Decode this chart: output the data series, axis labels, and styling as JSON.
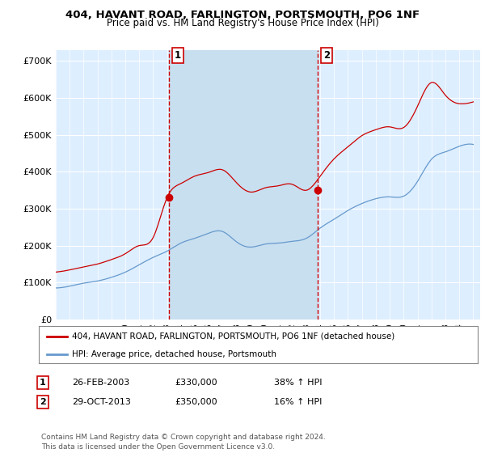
{
  "title": "404, HAVANT ROAD, FARLINGTON, PORTSMOUTH, PO6 1NF",
  "subtitle": "Price paid vs. HM Land Registry's House Price Index (HPI)",
  "plot_bg_color": "#ddeeff",
  "shade_color": "#c8dff0",
  "ylabel_ticks": [
    "£0",
    "£100K",
    "£200K",
    "£300K",
    "£400K",
    "£500K",
    "£600K",
    "£700K"
  ],
  "ytick_values": [
    0,
    100000,
    200000,
    300000,
    400000,
    500000,
    600000,
    700000
  ],
  "ylim": [
    0,
    730000
  ],
  "xlim_start": 1995.0,
  "xlim_end": 2025.5,
  "purchase1_date": 2003.13,
  "purchase1_price": 330000,
  "purchase2_date": 2013.83,
  "purchase2_price": 350000,
  "legend_entries": [
    "404, HAVANT ROAD, FARLINGTON, PORTSMOUTH, PO6 1NF (detached house)",
    "HPI: Average price, detached house, Portsmouth"
  ],
  "legend_colors": [
    "#cc0000",
    "#6699cc"
  ],
  "table_data": [
    {
      "num": "1",
      "date": "26-FEB-2003",
      "price": "£330,000",
      "hpi": "38% ↑ HPI"
    },
    {
      "num": "2",
      "date": "29-OCT-2013",
      "price": "£350,000",
      "hpi": "16% ↑ HPI"
    }
  ],
  "footer": "Contains HM Land Registry data © Crown copyright and database right 2024.\nThis data is licensed under the Open Government Licence v3.0.",
  "hpi_line_color": "#6699cc",
  "price_line_color": "#cc0000",
  "vline_color": "#cc0000",
  "grid_color": "#bbccdd"
}
